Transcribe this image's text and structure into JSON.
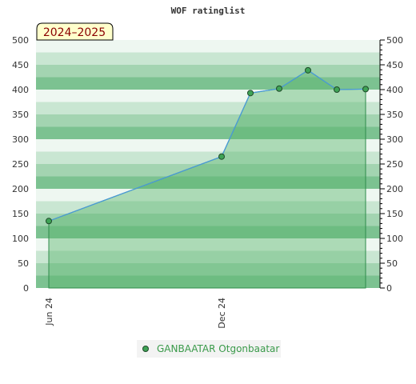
{
  "chart_data": {
    "type": "area",
    "title": "WOF ratinglist",
    "annotation": "2024–2025",
    "xlabel": "",
    "ylabel": "",
    "x_tick_labels": [
      "Jun 24",
      "Dec 24"
    ],
    "ylim": [
      0,
      500
    ],
    "yticks": [
      0,
      50,
      100,
      150,
      200,
      250,
      300,
      350,
      400,
      450,
      500
    ],
    "grid": true,
    "legend_position": "bottom",
    "series": [
      {
        "name": "GANBAATAR Otgonbaatar",
        "x": [
          "2024-06",
          "2024-12",
          "2025-01",
          "2025-02",
          "2025-03",
          "2025-04",
          "2025-05"
        ],
        "values": [
          135,
          265,
          393,
          402,
          439,
          400,
          401
        ]
      }
    ],
    "colors": {
      "line": "#4a9ad8",
      "area": "#5ab56e",
      "marker_fill": "#3fa356",
      "band_dark": "#7cc291",
      "band_light": "#eef7f1",
      "legend_text": "#3a9a4a"
    }
  }
}
